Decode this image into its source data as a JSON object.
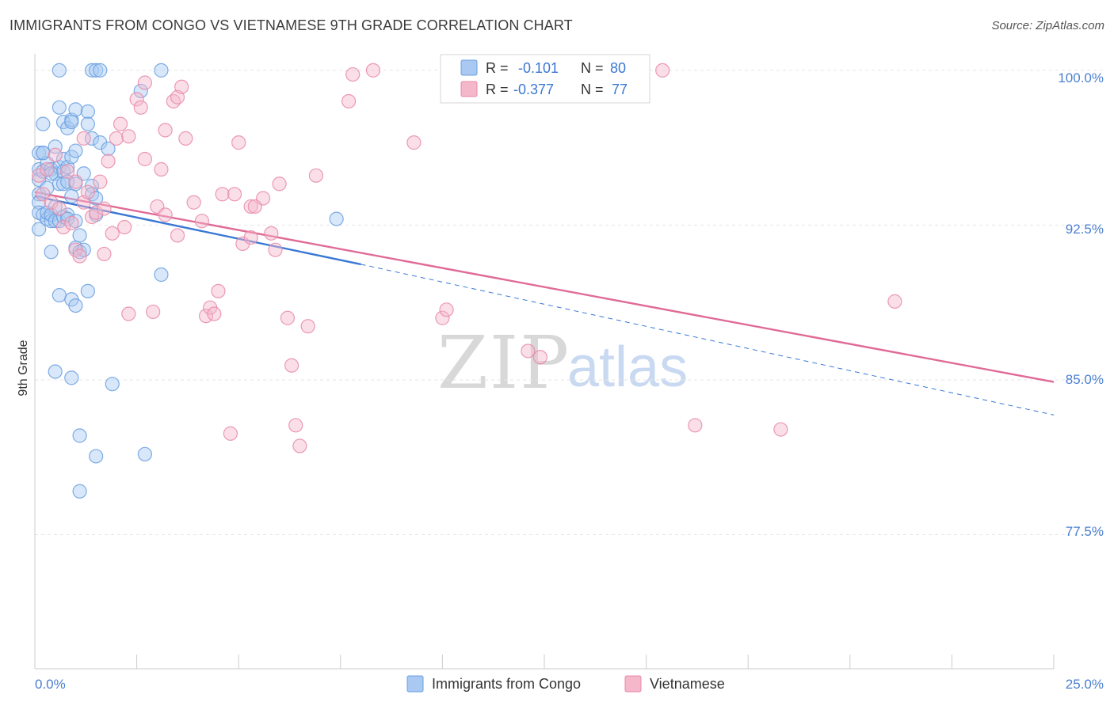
{
  "title": "IMMIGRANTS FROM CONGO VS VIETNAMESE 9TH GRADE CORRELATION CHART",
  "source": "Source: ZipAtlas.com",
  "watermark": {
    "zip": "ZIP",
    "atlas": "atlas"
  },
  "chart_data": {
    "type": "scatter",
    "title": "IMMIGRANTS FROM CONGO VS VIETNAMESE 9TH GRADE CORRELATION CHART",
    "xlabel": "",
    "ylabel": "9th Grade",
    "xlim": [
      0,
      25
    ],
    "ylim": [
      71.0,
      100.8
    ],
    "x_tick_labels": [
      "0.0%",
      "25.0%"
    ],
    "y_ticks": [
      100.0,
      92.5,
      85.0,
      77.5
    ],
    "y_tick_labels": [
      "100.0%",
      "92.5%",
      "85.0%",
      "77.5%"
    ],
    "grid": true,
    "legend_position": "bottom-center",
    "series": [
      {
        "name": "Immigrants from Congo",
        "color": "#6a9fe0",
        "fill": "#a9c9f2",
        "R": "-0.101",
        "N": "80",
        "trend": {
          "x": [
            0,
            8.0
          ],
          "y": [
            93.9,
            90.6
          ],
          "dashed_to": [
            25,
            83.3
          ]
        },
        "points": [
          [
            0.1,
            96.0
          ],
          [
            0.1,
            95.2
          ],
          [
            0.1,
            94.7
          ],
          [
            0.1,
            94.0
          ],
          [
            0.1,
            93.6
          ],
          [
            0.1,
            93.1
          ],
          [
            0.1,
            92.3
          ],
          [
            0.2,
            96.0
          ],
          [
            0.2,
            95.1
          ],
          [
            0.2,
            93.0
          ],
          [
            0.2,
            97.4
          ],
          [
            0.3,
            95.5
          ],
          [
            0.3,
            94.3
          ],
          [
            0.3,
            92.8
          ],
          [
            0.3,
            93.1
          ],
          [
            0.4,
            95.2
          ],
          [
            0.4,
            92.7
          ],
          [
            0.4,
            91.2
          ],
          [
            0.4,
            93.0
          ],
          [
            0.5,
            96.3
          ],
          [
            0.5,
            95.0
          ],
          [
            0.5,
            93.4
          ],
          [
            0.5,
            92.7
          ],
          [
            0.5,
            85.4
          ],
          [
            0.6,
            98.2
          ],
          [
            0.6,
            95.3
          ],
          [
            0.6,
            94.5
          ],
          [
            0.6,
            92.7
          ],
          [
            0.6,
            89.1
          ],
          [
            0.7,
            97.5
          ],
          [
            0.7,
            95.7
          ],
          [
            0.7,
            95.1
          ],
          [
            0.7,
            94.5
          ],
          [
            0.7,
            92.9
          ],
          [
            0.8,
            97.2
          ],
          [
            0.8,
            95.3
          ],
          [
            0.8,
            93.0
          ],
          [
            0.8,
            92.8
          ],
          [
            0.8,
            94.6
          ],
          [
            0.9,
            97.6
          ],
          [
            0.9,
            95.8
          ],
          [
            0.9,
            88.9
          ],
          [
            0.9,
            93.9
          ],
          [
            0.9,
            85.1
          ],
          [
            1.0,
            98.1
          ],
          [
            1.0,
            94.5
          ],
          [
            1.0,
            92.7
          ],
          [
            1.0,
            91.4
          ],
          [
            1.0,
            88.6
          ],
          [
            1.0,
            96.1
          ],
          [
            1.1,
            92.0
          ],
          [
            1.1,
            91.2
          ],
          [
            1.1,
            82.3
          ],
          [
            1.1,
            79.6
          ],
          [
            1.2,
            95.0
          ],
          [
            1.2,
            91.3
          ],
          [
            0.6,
            100.0
          ],
          [
            1.3,
            98.0
          ],
          [
            1.3,
            97.4
          ],
          [
            1.3,
            89.3
          ],
          [
            1.4,
            96.7
          ],
          [
            1.4,
            94.4
          ],
          [
            1.4,
            94.0
          ],
          [
            1.5,
            93.0
          ],
          [
            1.5,
            93.8
          ],
          [
            1.5,
            81.3
          ],
          [
            1.6,
            96.5
          ],
          [
            1.4,
            100.0
          ],
          [
            1.5,
            100.0
          ],
          [
            1.6,
            100.0
          ],
          [
            1.8,
            96.2
          ],
          [
            1.9,
            84.8
          ],
          [
            2.6,
            99.0
          ],
          [
            2.7,
            81.4
          ],
          [
            3.1,
            100.0
          ],
          [
            3.1,
            90.1
          ],
          [
            7.4,
            92.8
          ],
          [
            0.2,
            96.0
          ],
          [
            0.4,
            95.0
          ],
          [
            0.9,
            97.5
          ]
        ]
      },
      {
        "name": "Vietnamese",
        "color": "#e889a8",
        "fill": "#f5b8cb",
        "R": "-0.377",
        "N": "77",
        "trend": {
          "x": [
            0,
            25
          ],
          "y": [
            94.1,
            84.9
          ]
        },
        "points": [
          [
            0.1,
            94.9
          ],
          [
            0.2,
            94.0
          ],
          [
            0.3,
            95.2
          ],
          [
            0.4,
            93.6
          ],
          [
            0.5,
            95.9
          ],
          [
            0.6,
            93.3
          ],
          [
            0.7,
            92.4
          ],
          [
            0.8,
            95.1
          ],
          [
            0.9,
            92.6
          ],
          [
            1.0,
            94.6
          ],
          [
            1.0,
            91.3
          ],
          [
            1.1,
            91.0
          ],
          [
            1.2,
            93.6
          ],
          [
            1.2,
            96.7
          ],
          [
            1.3,
            94.1
          ],
          [
            1.4,
            92.9
          ],
          [
            1.5,
            93.1
          ],
          [
            1.6,
            94.6
          ],
          [
            1.7,
            93.3
          ],
          [
            1.7,
            91.1
          ],
          [
            1.8,
            95.6
          ],
          [
            1.9,
            92.1
          ],
          [
            2.0,
            96.7
          ],
          [
            2.1,
            97.4
          ],
          [
            2.2,
            92.4
          ],
          [
            2.3,
            96.8
          ],
          [
            2.3,
            88.2
          ],
          [
            2.5,
            98.6
          ],
          [
            2.6,
            98.2
          ],
          [
            2.7,
            95.7
          ],
          [
            2.7,
            99.4
          ],
          [
            2.9,
            88.3
          ],
          [
            3.0,
            93.4
          ],
          [
            3.1,
            95.2
          ],
          [
            3.2,
            93.0
          ],
          [
            3.2,
            97.1
          ],
          [
            3.4,
            98.5
          ],
          [
            3.5,
            98.7
          ],
          [
            3.5,
            92.0
          ],
          [
            3.6,
            99.2
          ],
          [
            3.7,
            96.7
          ],
          [
            3.9,
            93.6
          ],
          [
            4.1,
            92.7
          ],
          [
            4.2,
            88.1
          ],
          [
            4.3,
            88.5
          ],
          [
            4.4,
            88.2
          ],
          [
            4.5,
            89.3
          ],
          [
            4.6,
            94.0
          ],
          [
            4.8,
            82.4
          ],
          [
            4.9,
            94.0
          ],
          [
            5.0,
            96.5
          ],
          [
            5.1,
            91.6
          ],
          [
            5.3,
            91.9
          ],
          [
            5.3,
            93.4
          ],
          [
            5.4,
            93.4
          ],
          [
            5.6,
            93.8
          ],
          [
            5.8,
            92.1
          ],
          [
            5.9,
            91.3
          ],
          [
            6.0,
            94.5
          ],
          [
            6.2,
            88.0
          ],
          [
            6.3,
            85.7
          ],
          [
            6.4,
            82.8
          ],
          [
            6.5,
            81.8
          ],
          [
            6.7,
            87.6
          ],
          [
            6.9,
            94.9
          ],
          [
            7.7,
            98.5
          ],
          [
            7.8,
            99.8
          ],
          [
            8.3,
            100.0
          ],
          [
            9.3,
            96.5
          ],
          [
            10.0,
            88.0
          ],
          [
            10.1,
            88.4
          ],
          [
            12.1,
            86.4
          ],
          [
            12.4,
            86.1
          ],
          [
            15.4,
            100.0
          ],
          [
            16.2,
            82.8
          ],
          [
            18.3,
            82.6
          ],
          [
            21.1,
            88.8
          ]
        ]
      }
    ]
  },
  "legend": {
    "items": [
      {
        "label": "Immigrants from Congo"
      },
      {
        "label": "Vietnamese"
      }
    ]
  },
  "stats": {
    "rows": [
      {
        "r_label": "R =",
        "r_value": "-0.101",
        "n_label": "N =",
        "n_value": "80"
      },
      {
        "r_label": "R =",
        "r_value": "-0.377",
        "n_label": "N =",
        "n_value": "77"
      }
    ]
  }
}
